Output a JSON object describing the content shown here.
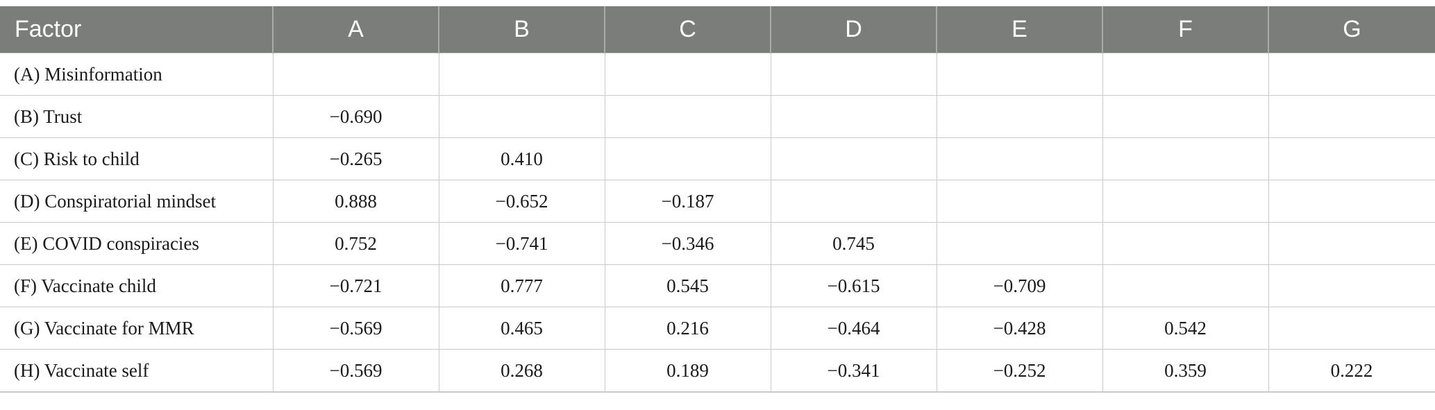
{
  "table": {
    "headers": [
      "Factor",
      "A",
      "B",
      "C",
      "D",
      "E",
      "F",
      "G"
    ],
    "rows": [
      [
        "(A) Misinformation",
        "",
        "",
        "",
        "",
        "",
        "",
        ""
      ],
      [
        "(B) Trust",
        "−0.690",
        "",
        "",
        "",
        "",
        "",
        ""
      ],
      [
        "(C) Risk to child",
        "−0.265",
        "0.410",
        "",
        "",
        "",
        "",
        ""
      ],
      [
        "(D) Conspiratorial mindset",
        "0.888",
        "−0.652",
        "−0.187",
        "",
        "",
        "",
        ""
      ],
      [
        "(E) COVID conspiracies",
        "0.752",
        "−0.741",
        "−0.346",
        "0.745",
        "",
        "",
        ""
      ],
      [
        "(F) Vaccinate child",
        "−0.721",
        "0.777",
        "0.545",
        "−0.615",
        "−0.709",
        "",
        ""
      ],
      [
        "(G) Vaccinate for MMR",
        "−0.569",
        "0.465",
        "0.216",
        "−0.464",
        "−0.428",
        "0.542",
        ""
      ],
      [
        "(H) Vaccinate self",
        "−0.569",
        "0.268",
        "0.189",
        "−0.341",
        "−0.252",
        "0.359",
        "0.222"
      ]
    ]
  },
  "colors": {
    "header_bg": "#7b7d7b",
    "header_text": "#ffffff",
    "grid_line": "#c9c9c9",
    "cell_text": "#1a1a1a"
  }
}
